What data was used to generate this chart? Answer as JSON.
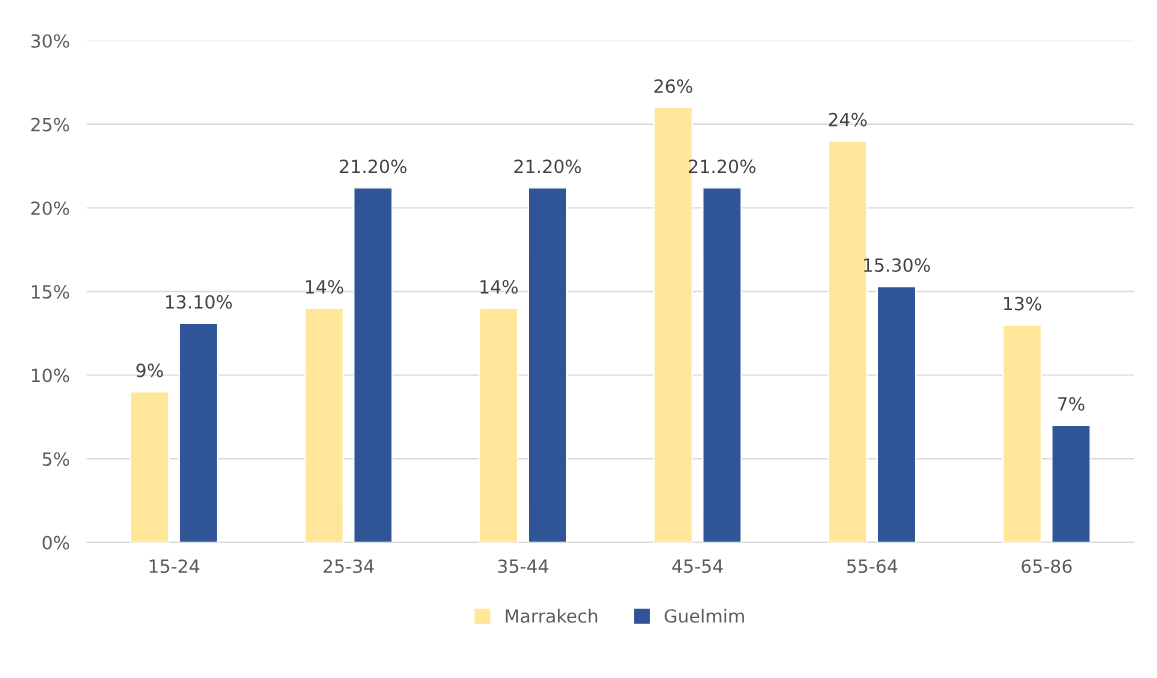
{
  "chart_data": {
    "type": "bar",
    "categories": [
      "15-24",
      "25-34",
      "35-44",
      "45-54",
      "55-64",
      "65-86"
    ],
    "series": [
      {
        "name": "Marrakech",
        "color": "#ffe699",
        "values": [
          9,
          14,
          14,
          26,
          24,
          13
        ],
        "value_labels": [
          "9%",
          "14%",
          "14%",
          "26%",
          "24%",
          "13%"
        ]
      },
      {
        "name": "Guelmim",
        "color": "#2f5597",
        "values": [
          13.1,
          21.2,
          21.2,
          21.2,
          15.3,
          7
        ],
        "value_labels": [
          "13.10%",
          "21.20%",
          "21.20%",
          "21.20%",
          "15.30%",
          "7%"
        ]
      }
    ],
    "ylim": [
      0,
      30
    ],
    "yticks": [
      {
        "value": 0,
        "label": "0%"
      },
      {
        "value": 5,
        "label": "5%"
      },
      {
        "value": 10,
        "label": "10%"
      },
      {
        "value": 15,
        "label": "15%"
      },
      {
        "value": 20,
        "label": "20%"
      },
      {
        "value": 25,
        "label": "25%"
      },
      {
        "value": 30,
        "label": "30%"
      }
    ],
    "grid": "y",
    "legend": "bottom"
  }
}
